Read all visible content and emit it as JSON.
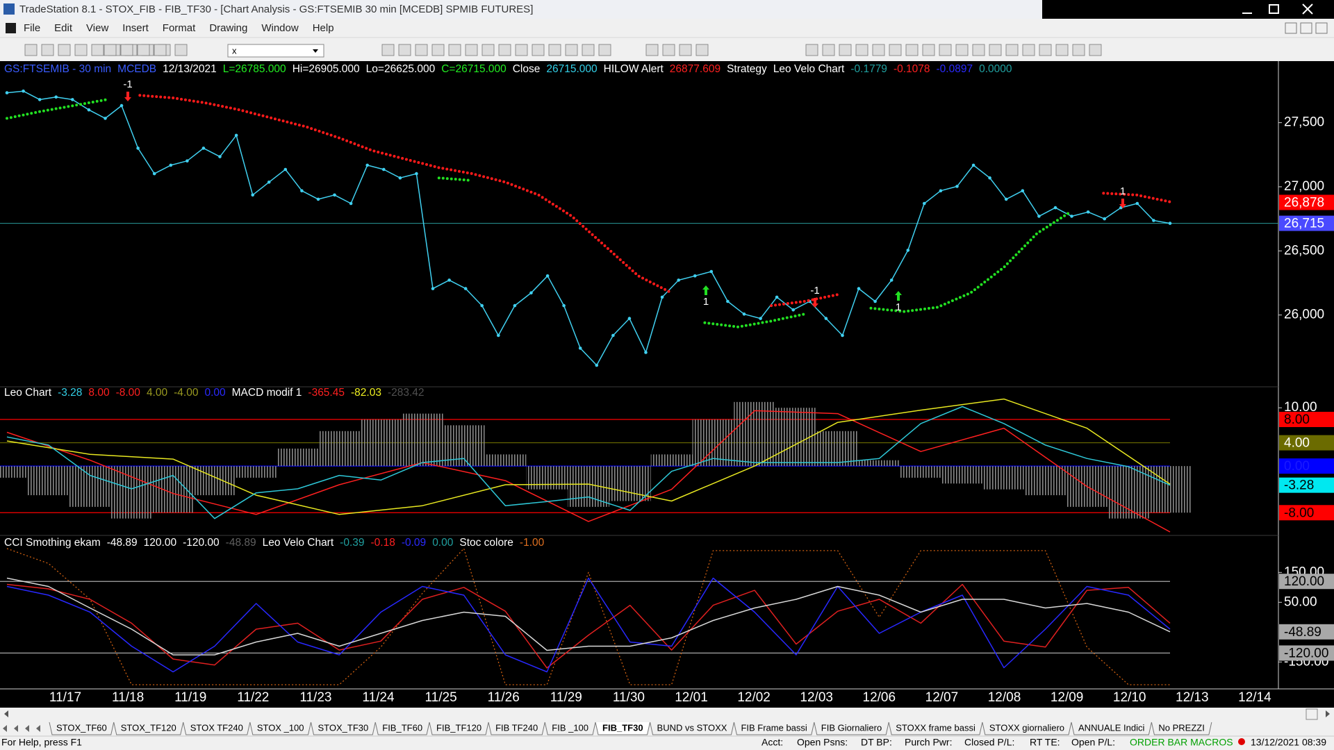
{
  "window": {
    "title": "TradeStation 8.1 - STOX_FIB - FIB_TF30 - [Chart Analysis - GS:FTSEMIB  30 min  [MCEDB] SPMIB FUTURES]"
  },
  "menu": [
    "File",
    "Edit",
    "View",
    "Insert",
    "Format",
    "Drawing",
    "Window",
    "Help"
  ],
  "toolbar": {
    "symbol_box": "x"
  },
  "x_axis": {
    "categories": [
      "11/17",
      "11/18",
      "11/19",
      "11/22",
      "11/23",
      "11/24",
      "11/25",
      "11/26",
      "11/29",
      "11/30",
      "12/01",
      "12/02",
      "12/03",
      "12/06",
      "12/07",
      "12/08",
      "12/09",
      "12/10",
      "12/13",
      "12/14"
    ]
  },
  "chart_data": [
    {
      "type": "line",
      "header": [
        {
          "text": "GS:FTSEMIB - 30 min",
          "color": "#3a5cff"
        },
        {
          "text": "MCEDB",
          "color": "#3a5cff"
        },
        {
          "text": "12/13/2021",
          "color": "#ffffff"
        },
        {
          "text": "L=26785.000",
          "color": "#22ee22"
        },
        {
          "text": "Hi=26905.000",
          "color": "#ffffff"
        },
        {
          "text": "Lo=26625.000",
          "color": "#ffffff"
        },
        {
          "text": "C=26715.000",
          "color": "#22ee22"
        },
        {
          "text": "Close",
          "color": "#ffffff"
        },
        {
          "text": "26715.000",
          "color": "#33d0e8"
        },
        {
          "text": "HILOW Alert",
          "color": "#ffffff"
        },
        {
          "text": "26877.609",
          "color": "#ff2020"
        },
        {
          "text": "Strategy",
          "color": "#ffffff"
        },
        {
          "text": "Leo Velo Chart",
          "color": "#ffffff"
        },
        {
          "text": "-0.1779",
          "color": "#20a0a0"
        },
        {
          "text": "-0.1078",
          "color": "#ff2020"
        },
        {
          "text": "-0.0897",
          "color": "#2a2aff"
        },
        {
          "text": "0.0000",
          "color": "#20a0a0"
        }
      ],
      "ylim": [
        25440,
        27980
      ],
      "yticks": [
        {
          "value": 27500,
          "label": "27,500"
        },
        {
          "value": 27000,
          "label": "27,000"
        },
        {
          "value": 26500,
          "label": "26,500"
        },
        {
          "value": 26000,
          "label": "26,000"
        }
      ],
      "series": [
        {
          "color": "#40d0f0",
          "style": "dots",
          "values": [
            27733,
            27746,
            27680,
            27700,
            27680,
            27600,
            27534,
            27633,
            27301,
            27102,
            27168,
            27202,
            27301,
            27235,
            27401,
            26936,
            27036,
            27135,
            26969,
            26903,
            26936,
            26870,
            27168,
            27135,
            27069,
            27102,
            26206,
            26272,
            26206,
            26073,
            25841,
            26073,
            26173,
            26305,
            26073,
            25741,
            25608,
            25841,
            25973,
            25708,
            26139,
            26272,
            26305,
            26339,
            26106,
            26007,
            25973,
            26139,
            26040,
            26106,
            25973,
            25841,
            26206,
            26106,
            26272,
            26505,
            26870,
            26969,
            27003,
            27168,
            27069,
            26903,
            26969,
            26770,
            26837,
            26770,
            26803,
            26750,
            26837,
            26870,
            26737,
            26715
          ]
        },
        {
          "color": "#ff1a1a",
          "style": "dotted",
          "values": [
            null,
            null,
            null,
            null,
            27713,
            27693,
            27653,
            27600,
            27534,
            27468,
            27381,
            27282,
            27215,
            27149,
            27102,
            27036,
            26936,
            26770,
            26538,
            26305,
            26173,
            null,
            null,
            26073,
            26106,
            26159,
            null,
            null,
            null,
            null,
            null,
            null,
            null,
            26950,
            26936,
            26883
          ]
        },
        {
          "color": "#22e022",
          "style": "dotted",
          "values": [
            27534,
            27587,
            27633,
            27680,
            null,
            null,
            null,
            null,
            null,
            null,
            null,
            null,
            null,
            27069,
            27049,
            null,
            null,
            null,
            null,
            null,
            null,
            25940,
            25907,
            25953,
            26007,
            null,
            26053,
            26027,
            26060,
            26173,
            26372,
            26637,
            26803,
            null,
            null,
            null
          ]
        }
      ],
      "price_flags": [
        {
          "value": 26878,
          "label": "26,878",
          "color": "#ff0000",
          "text_color": "#ffffff"
        },
        {
          "value": 26715,
          "label": "26,715",
          "color": "#4a4aff",
          "text_color": "#ffffff"
        }
      ],
      "annotations": [
        "-1",
        "1",
        "-1",
        "1",
        "1"
      ]
    },
    {
      "type": "line",
      "header": [
        {
          "text": "Leo Chart",
          "color": "#ffffff"
        },
        {
          "text": "-3.28",
          "color": "#33d0e8"
        },
        {
          "text": "8.00",
          "color": "#ff2020"
        },
        {
          "text": "-8.00",
          "color": "#ff2020"
        },
        {
          "text": "4.00",
          "color": "#9a9a20"
        },
        {
          "text": "-4.00",
          "color": "#9a9a20"
        },
        {
          "text": "0.00",
          "color": "#2a2aff"
        },
        {
          "text": "MACD modif 1",
          "color": "#ffffff"
        },
        {
          "text": "-365.45",
          "color": "#ff2020"
        },
        {
          "text": "-82.03",
          "color": "#f0f020"
        },
        {
          "text": "-283.42",
          "color": "#505050"
        }
      ],
      "ylim": [
        -11.9,
        13.6
      ],
      "yticks": [
        {
          "value": 10,
          "label": "10.00"
        }
      ],
      "levels": [
        {
          "value": 8,
          "label": "8.00",
          "color": "#ff0000",
          "text_color": "#000000"
        },
        {
          "value": 4,
          "label": "4.00",
          "color": "#6b6b00",
          "text_color": "#ffffff"
        },
        {
          "value": 0,
          "label": "0.00",
          "color": "#0000ff",
          "text_color": "#1a1aff"
        },
        {
          "value": -8,
          "label": "-8.00",
          "color": "#ff0000",
          "text_color": "#000000"
        }
      ],
      "last_value": {
        "value": -3.28,
        "label": "-3.28",
        "color": "#00e8f0",
        "text_color": "#000000"
      },
      "series": [
        {
          "color": "#8a8a8a",
          "style": "histogram",
          "values": [
            -2,
            -5,
            -7,
            -9,
            -8,
            -5,
            -2,
            3,
            6,
            8,
            9,
            7,
            2,
            -4,
            -7,
            -6,
            2,
            8,
            11,
            10,
            6,
            1,
            -2,
            -3,
            -4,
            -5,
            -7,
            -9,
            -8
          ]
        },
        {
          "color": "#ff2020",
          "style": "line",
          "values": [
            5.8,
            1.0,
            -4.7,
            -8.3,
            -3.2,
            0.6,
            -2.5,
            -9.5,
            -4,
            9.5,
            9,
            2.5,
            6.5,
            -3.5,
            -11.3
          ]
        },
        {
          "color": "#e8e820",
          "style": "line",
          "values": [
            4.3,
            2.0,
            1.2,
            -5.0,
            -8.3,
            -6.8,
            -3.2,
            -3.1,
            -6.0,
            0,
            7.5,
            9.6,
            11.5,
            6.5,
            -3.1
          ]
        },
        {
          "color": "#2ec8d8",
          "style": "line",
          "values": [
            5,
            3.6,
            -1.6,
            -3.9,
            -1.6,
            -9,
            -4.6,
            -3.9,
            -1.6,
            -2.4,
            0.6,
            1.3,
            -6.8,
            -6.1,
            -5.3,
            -7.6,
            -0.9,
            1.3,
            0.6,
            0.6,
            0.6,
            1.3,
            7.3,
            10.2,
            7.3,
            3.6,
            1.3,
            -0.1,
            -3.28
          ]
        }
      ]
    },
    {
      "type": "line",
      "header": [
        {
          "text": "CCI Smothing ekam",
          "color": "#ffffff"
        },
        {
          "text": "-48.89",
          "color": "#ffffff"
        },
        {
          "text": "120.00",
          "color": "#ffffff"
        },
        {
          "text": "-120.00",
          "color": "#ffffff"
        },
        {
          "text": "-48.89",
          "color": "#606060"
        },
        {
          "text": "Leo Velo Chart",
          "color": "#ffffff"
        },
        {
          "text": "-0.39",
          "color": "#20a0a0"
        },
        {
          "text": "-0.18",
          "color": "#ff2020"
        },
        {
          "text": "-0.09",
          "color": "#2a2aff"
        },
        {
          "text": "0.00",
          "color": "#20a0a0"
        },
        {
          "text": "Stoc colore",
          "color": "#ffffff"
        },
        {
          "text": "-1.00",
          "color": "#e07020"
        }
      ],
      "ylim": [
        -240,
        274
      ],
      "yticks": [
        {
          "value": 150,
          "label": "150.00"
        },
        {
          "value": 50,
          "label": "50.00"
        },
        {
          "value": -150,
          "label": "-150.00"
        }
      ],
      "levels": [
        {
          "value": 120,
          "label": "120.00",
          "color": "#a8a8a8",
          "text_color": "#000000"
        },
        {
          "value": -120,
          "label": "-120.00",
          "color": "#a8a8a8",
          "text_color": "#000000"
        }
      ],
      "last_value": {
        "value": -48.89,
        "label": "-48.89",
        "color": "#a8a8a8",
        "text_color": "#000000"
      },
      "series": [
        {
          "color": "#d06010",
          "style": "dashed",
          "values": [
            230,
            180,
            60,
            -226,
            -226,
            -226,
            -226,
            -226,
            -226,
            -100,
            80,
            230,
            -226,
            -226,
            150,
            -226,
            -226,
            223,
            223,
            223,
            223,
            0,
            223,
            223,
            223,
            223,
            -100,
            -226,
            -226
          ]
        },
        {
          "color": "#e02020",
          "style": "line",
          "values": [
            110,
            95,
            60,
            -20,
            -140,
            -160,
            -40,
            -20,
            -110,
            -80,
            60,
            100,
            20,
            -170,
            -60,
            40,
            -110,
            40,
            90,
            -90,
            20,
            60,
            -20,
            110,
            -80,
            -100,
            90,
            100,
            -20
          ]
        },
        {
          "color": "#2828ff",
          "style": "line",
          "values": [
            103,
            74,
            17,
            -97,
            -183,
            -97,
            46,
            -83,
            -126,
            17,
            103,
            74,
            -126,
            -183,
            131,
            -83,
            -97,
            131,
            17,
            -126,
            103,
            -54,
            17,
            74,
            -169,
            -40,
            103,
            74,
            -40
          ]
        },
        {
          "color": "#d8d8d8",
          "style": "line",
          "values": [
            131,
            103,
            31,
            -40,
            -126,
            -126,
            -83,
            -54,
            -97,
            -54,
            -11,
            17,
            3,
            -111,
            -97,
            -97,
            -69,
            -11,
            31,
            60,
            103,
            74,
            17,
            60,
            60,
            31,
            46,
            17,
            -48.89
          ]
        }
      ]
    }
  ],
  "tabs": [
    "STOX_TF60",
    "STOX_TF120",
    "STOX TF240",
    "STOX _100",
    "STOX_TF30",
    "FIB_TF60",
    "FIB_TF120",
    "FIB TF240",
    "FIB _100",
    "FIB_TF30",
    "BUND vs STOXX",
    "FIB Frame bassi",
    "FIB Giornaliero",
    "STOXX frame bassi",
    "STOXX giornaliero",
    "ANNUALE Indici",
    "No PREZZI"
  ],
  "active_tab": 9,
  "status_bar": [
    "For Help, press F1",
    "Acct:",
    "Open Psns:",
    "DT BP:",
    "Purch Pwr:",
    "Closed P/L:",
    "RT TE:",
    "Open P/L:",
    "ORDER BAR MACROS",
    "13/12/2021 08:39"
  ]
}
